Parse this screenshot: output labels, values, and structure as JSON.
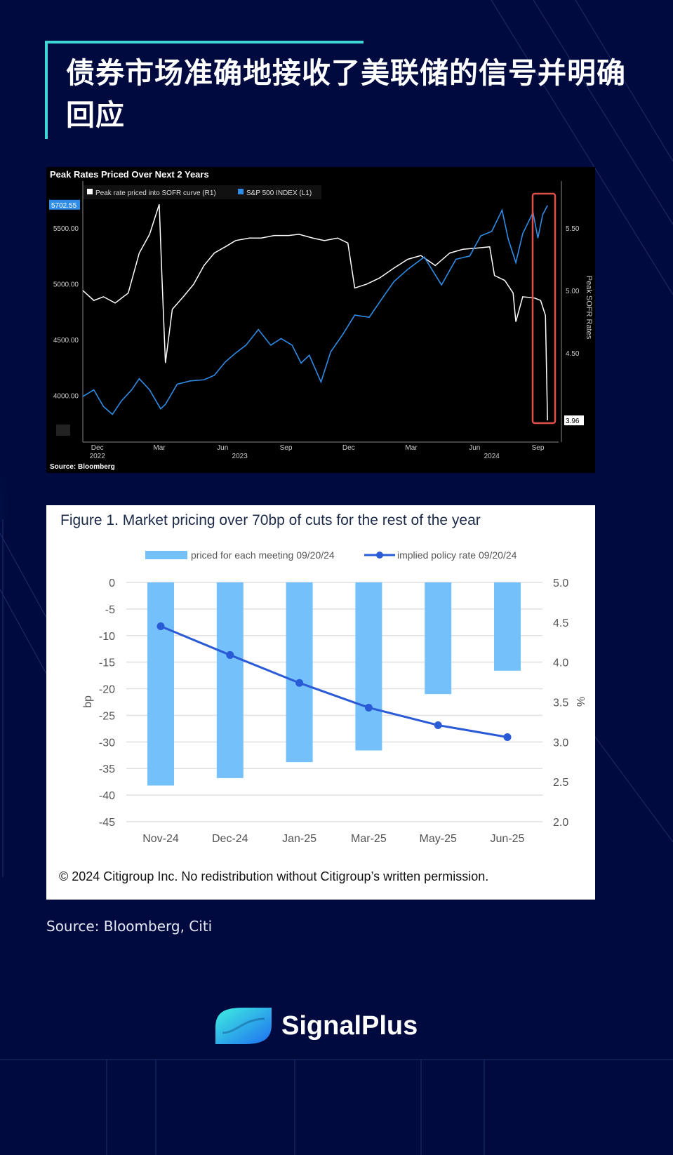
{
  "header": {
    "title": "债券市场准确地接收了美联储的信号并明确回应"
  },
  "colors": {
    "background": "#000a3f",
    "accent": "#3fd6d6",
    "sp500": "#2f8ce6",
    "sofr": "#ffffff",
    "bar": "#74c0fb",
    "policy_line": "#2a5bd7",
    "highlight_box": "#e0504a"
  },
  "chart_data": [
    {
      "type": "line",
      "title": "Peak Rates Priced Over Next 2 Years",
      "source": "Source: Bloomberg",
      "legend_placement": "top-left",
      "ylabel_right": "Peak SOFR Rates",
      "left_ticks": [
        "5500.00",
        "5000.00",
        "4500.00",
        "4000.00"
      ],
      "right_ticks": [
        "5.50",
        "5.00",
        "4.50"
      ],
      "x_ticks": [
        "Dec",
        "Mar",
        "Jun",
        "Sep",
        "Dec",
        "Mar",
        "Jun",
        "Sep"
      ],
      "year_labels": [
        "2022",
        "2023",
        "2024"
      ],
      "last_value_left": "5702.55",
      "last_value_right": "3.96",
      "ylim_left": [
        3700,
        5850
      ],
      "ylim_right": [
        3.8,
        5.9
      ],
      "series": [
        {
          "name": "Peak rate priced into SOFR curve (R1)",
          "axis": "right",
          "icon": "white-square",
          "x": [
            "2022-11-15",
            "2022-12-01",
            "2022-12-15",
            "2023-01-01",
            "2023-01-20",
            "2023-02-05",
            "2023-02-20",
            "2023-03-06",
            "2023-03-10",
            "2023-03-15",
            "2023-03-25",
            "2023-04-10",
            "2023-04-25",
            "2023-05-10",
            "2023-05-25",
            "2023-06-10",
            "2023-06-25",
            "2023-07-15",
            "2023-08-01",
            "2023-08-20",
            "2023-09-10",
            "2023-09-25",
            "2023-10-15",
            "2023-11-01",
            "2023-11-20",
            "2023-12-05",
            "2023-12-15",
            "2024-01-01",
            "2024-01-20",
            "2024-02-10",
            "2024-03-01",
            "2024-03-20",
            "2024-04-10",
            "2024-05-01",
            "2024-05-20",
            "2024-06-10",
            "2024-06-28",
            "2024-07-05",
            "2024-07-20",
            "2024-08-01",
            "2024-08-05",
            "2024-08-15",
            "2024-09-01",
            "2024-09-10",
            "2024-09-17",
            "2024-09-20"
          ],
          "values": [
            5.0,
            4.92,
            4.95,
            4.9,
            4.98,
            5.3,
            5.45,
            5.69,
            5.1,
            4.42,
            4.85,
            4.95,
            5.05,
            5.2,
            5.3,
            5.35,
            5.4,
            5.42,
            5.42,
            5.44,
            5.44,
            5.45,
            5.42,
            5.4,
            5.42,
            5.38,
            5.02,
            5.05,
            5.1,
            5.18,
            5.25,
            5.28,
            5.2,
            5.3,
            5.33,
            5.34,
            5.35,
            5.12,
            5.08,
            4.98,
            4.75,
            4.95,
            4.94,
            4.92,
            4.8,
            3.96
          ]
        },
        {
          "name": "S&P 500 INDEX (L1)",
          "axis": "left",
          "icon": "blue-square",
          "x": [
            "2022-11-15",
            "2022-12-01",
            "2022-12-15",
            "2022-12-28",
            "2023-01-10",
            "2023-01-25",
            "2023-02-05",
            "2023-02-20",
            "2023-03-08",
            "2023-03-15",
            "2023-04-01",
            "2023-04-20",
            "2023-05-10",
            "2023-05-25",
            "2023-06-10",
            "2023-06-25",
            "2023-07-10",
            "2023-07-28",
            "2023-08-15",
            "2023-08-30",
            "2023-09-15",
            "2023-09-28",
            "2023-10-10",
            "2023-10-27",
            "2023-11-10",
            "2023-11-28",
            "2023-12-15",
            "2024-01-05",
            "2024-01-25",
            "2024-02-10",
            "2024-03-01",
            "2024-03-25",
            "2024-04-19",
            "2024-05-10",
            "2024-05-30",
            "2024-06-15",
            "2024-07-01",
            "2024-07-16",
            "2024-07-25",
            "2024-08-05",
            "2024-08-15",
            "2024-08-30",
            "2024-09-06",
            "2024-09-13",
            "2024-09-20"
          ],
          "values": [
            3990,
            4050,
            3900,
            3830,
            3950,
            4050,
            4150,
            4050,
            3880,
            3920,
            4100,
            4130,
            4140,
            4180,
            4300,
            4380,
            4450,
            4590,
            4450,
            4510,
            4450,
            4290,
            4360,
            4120,
            4390,
            4550,
            4720,
            4700,
            4880,
            5020,
            5130,
            5240,
            4990,
            5220,
            5250,
            5430,
            5470,
            5660,
            5400,
            5190,
            5450,
            5640,
            5410,
            5620,
            5702.55
          ]
        }
      ]
    },
    {
      "type": "bar",
      "title": "Figure 1. Market pricing over 70bp of cuts for the rest of the year",
      "categories": [
        "Nov-24",
        "Dec-24",
        "Jan-25",
        "Mar-25",
        "May-25",
        "Jun-25"
      ],
      "ylabel": "bp",
      "ylabel_right": "%",
      "ylim": [
        -45,
        0
      ],
      "ylim_right": [
        2.0,
        5.0
      ],
      "left_ticks": [
        "0",
        "-5",
        "-10",
        "-15",
        "-20",
        "-25",
        "-30",
        "-35",
        "-40",
        "-45"
      ],
      "right_ticks": [
        "5.0",
        "4.5",
        "4.0",
        "3.5",
        "3.0",
        "2.5",
        "2.0"
      ],
      "grid": true,
      "legend_placement": "top",
      "series": [
        {
          "name": "priced for each meeting  09/20/24",
          "type": "bar",
          "axis": "left",
          "values": [
            -38.2,
            -36.8,
            -33.8,
            -31.6,
            -21.0,
            -16.6
          ]
        },
        {
          "name": "implied policy rate 09/20/24",
          "type": "line",
          "axis": "right",
          "values": [
            4.45,
            4.09,
            3.74,
            3.43,
            3.21,
            3.06
          ]
        }
      ],
      "copyright": "© 2024 Citigroup Inc. No redistribution without Citigroup’s written permission."
    }
  ],
  "footer": {
    "source": "Source: Bloomberg, Citi",
    "brand": "SignalPlus",
    "logo_icon": "signalplus-logo-icon"
  }
}
